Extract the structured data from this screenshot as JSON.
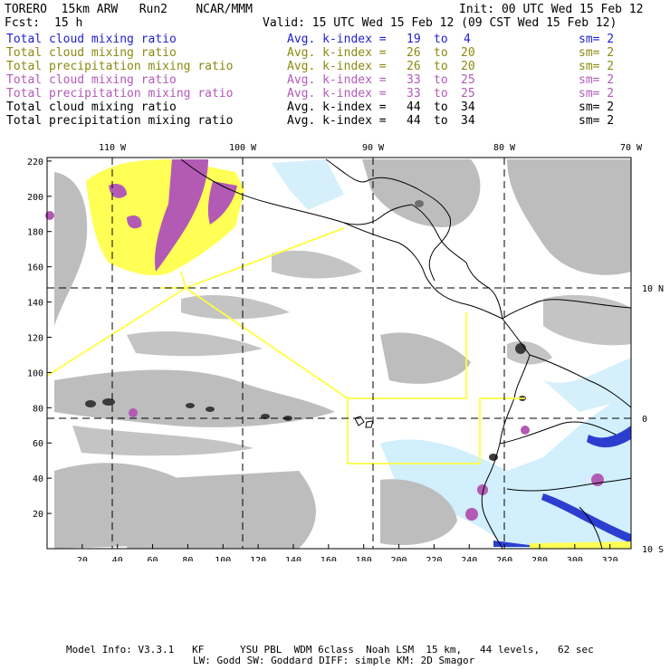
{
  "header": {
    "model_name": "TORERO  15km ARW   Run2    NCAR/MMM",
    "init": "Init: 00 UTC Wed 15 Feb 12",
    "fcst_label": "Fcst:",
    "fcst_value": "15 h",
    "valid": "Valid: 15 UTC Wed 15 Feb 12 (09 CST Wed 15 Feb 12)"
  },
  "legend": [
    {
      "field": "Total cloud mixing ratio",
      "kindex": "Avg. k-index =",
      "from": "19",
      "to_word": "to",
      "to": "4",
      "sm": "sm= 2",
      "color": "#1f1fcf"
    },
    {
      "field": "Total cloud mixing ratio",
      "kindex": "Avg. k-index =",
      "from": "26",
      "to_word": "to",
      "to": "20",
      "sm": "sm= 2",
      "color": "#8a8a10"
    },
    {
      "field": "Total precipitation mixing ratio",
      "kindex": "Avg. k-index =",
      "from": "26",
      "to_word": "to",
      "to": "20",
      "sm": "sm= 2",
      "color": "#8a8a10"
    },
    {
      "field": "Total cloud mixing ratio",
      "kindex": "Avg. k-index =",
      "from": "33",
      "to_word": "to",
      "to": "25",
      "sm": "sm= 2",
      "color": "#b25ab8"
    },
    {
      "field": "Total precipitation mixing ratio",
      "kindex": "Avg. k-index =",
      "from": "33",
      "to_word": "to",
      "to": "25",
      "sm": "sm= 2",
      "color": "#b25ab8"
    },
    {
      "field": "Total cloud mixing ratio",
      "kindex": "Avg. k-index =",
      "from": "44",
      "to_word": "to",
      "to": "34",
      "sm": "sm= 2",
      "color": "#000000"
    },
    {
      "field": "Total precipitation mixing ratio",
      "kindex": "Avg. k-index =",
      "from": "44",
      "to_word": "to",
      "to": "34",
      "sm": "sm= 2",
      "color": "#000000"
    }
  ],
  "map": {
    "x_ticks": [
      "20",
      "40",
      "60",
      "80",
      "100",
      "120",
      "140",
      "160",
      "180",
      "200",
      "220",
      "240",
      "260",
      "280",
      "300",
      "320"
    ],
    "y_ticks": [
      "20",
      "40",
      "60",
      "80",
      "100",
      "120",
      "140",
      "160",
      "180",
      "200",
      "220"
    ],
    "lon_labels": [
      "110 W",
      "100 W",
      "90 W",
      "80 W",
      "70 W"
    ],
    "lat_labels": [
      "10 N",
      "0",
      "10 S"
    ],
    "colors": {
      "cloud_gray": "#bdbdbd",
      "dark_core": "#3a3a3a",
      "yellow": "#ffff55",
      "purple": "#b35ab5",
      "light_blue": "#c9ecfb",
      "blue": "#2c3ed0",
      "boundary": "#ffff40"
    }
  },
  "footer": {
    "line1": "Model Info: V3.3.1   KF      YSU PBL  WDM 6class  Noah LSM  15 km,   44 levels,   62 sec",
    "line2": "LW: Godd SW: Goddard DIFF: simple KM: 2D Smagor"
  }
}
